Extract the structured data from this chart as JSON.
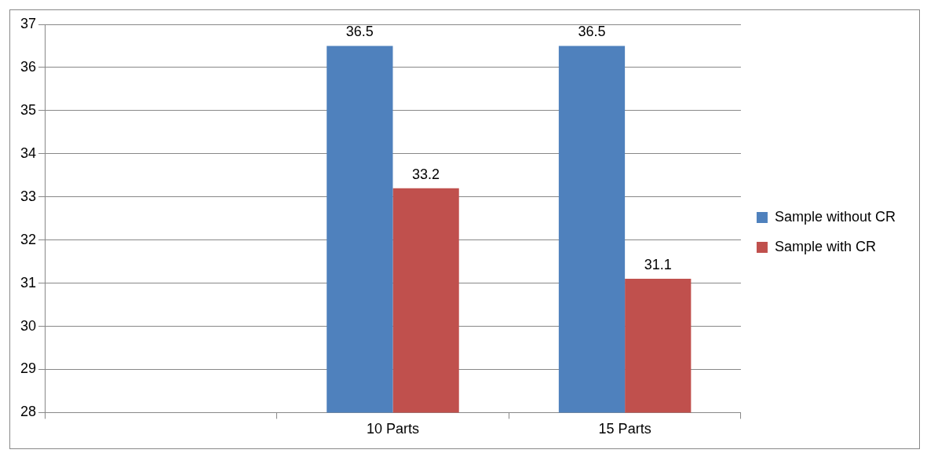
{
  "chart_data": {
    "type": "bar",
    "categories": [
      null,
      "10 Parts",
      "15 Parts"
    ],
    "series": [
      {
        "name": "Sample without CR",
        "color": "#4f81bd",
        "values": [
          null,
          36.5,
          36.5
        ]
      },
      {
        "name": "Sample with CR",
        "color": "#c0504d",
        "values": [
          null,
          33.2,
          31.1
        ]
      }
    ],
    "ylim": [
      28,
      37
    ],
    "yticks": [
      28,
      29,
      30,
      31,
      32,
      33,
      34,
      35,
      36,
      37
    ],
    "grid": "y",
    "legend": "right",
    "data_labels": true
  }
}
